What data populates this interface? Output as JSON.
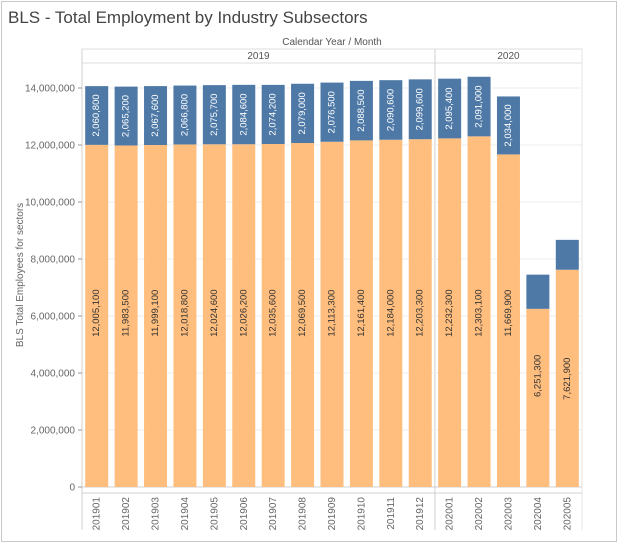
{
  "chart_data": {
    "type": "bar",
    "stacked": true,
    "title": "BLS - Total Employment by Industry Subsectors",
    "column_header": "Calendar Year  /  Month",
    "ylabel": "BLS Total Employees for sectors",
    "ylim": [
      0,
      15000000
    ],
    "yticks": [
      0,
      2000000,
      4000000,
      6000000,
      8000000,
      10000000,
      12000000,
      14000000
    ],
    "ytick_labels": [
      "0",
      "2,000,000",
      "4,000,000",
      "6,000,000",
      "8,000,000",
      "10,000,000",
      "12,000,000",
      "14,000,000"
    ],
    "grid": true,
    "years": [
      {
        "label": "2019",
        "count": 12
      },
      {
        "label": "2020",
        "count": 5
      }
    ],
    "categories": [
      "201901",
      "201902",
      "201903",
      "201904",
      "201905",
      "201906",
      "201907",
      "201908",
      "201909",
      "201910",
      "201911",
      "201912",
      "202001",
      "202002",
      "202003",
      "202004",
      "202005"
    ],
    "series": [
      {
        "color": "#ffbe7d",
        "label_color": "#333333",
        "values": [
          12005100,
          11983500,
          11999100,
          12018800,
          12024600,
          12026200,
          12035600,
          12069500,
          12113300,
          12161400,
          12184000,
          12203300,
          12232300,
          12303100,
          11669900,
          6251300,
          7621900
        ],
        "labels": [
          "12,005,100",
          "11,983,500",
          "11,999,100",
          "12,018,800",
          "12,024,600",
          "12,026,200",
          "12,035,600",
          "12,069,500",
          "12,113,300",
          "12,161,400",
          "12,184,000",
          "12,203,300",
          "12,232,300",
          "12,303,100",
          "11,669,900",
          "6,251,300",
          "7,621,900"
        ]
      },
      {
        "color": "#4e79a7",
        "label_color": "#ffffff",
        "values": [
          2060800,
          2065200,
          2067600,
          2066800,
          2075700,
          2084600,
          2074200,
          2079000,
          2076500,
          2088500,
          2090600,
          2099600,
          2095400,
          2091000,
          2034000,
          1200000,
          1050000
        ],
        "labels": [
          "2,060,800",
          "2,065,200",
          "2,067,600",
          "2,066,800",
          "2,075,700",
          "2,084,600",
          "2,074,200",
          "2,079,000",
          "2,076,500",
          "2,088,500",
          "2,090,600",
          "2,099,600",
          "2,095,400",
          "2,091,000",
          "2,034,000",
          "",
          ""
        ]
      }
    ]
  }
}
